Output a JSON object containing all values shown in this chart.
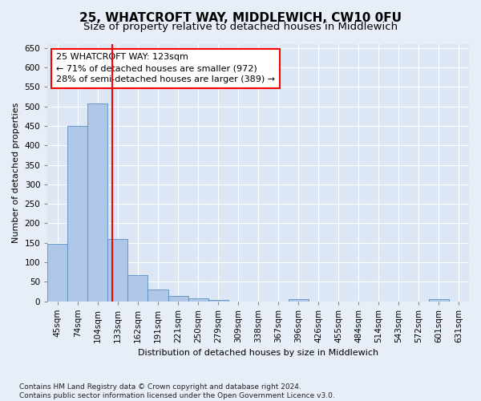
{
  "title": "25, WHATCROFT WAY, MIDDLEWICH, CW10 0FU",
  "subtitle": "Size of property relative to detached houses in Middlewich",
  "xlabel": "Distribution of detached houses by size in Middlewich",
  "ylabel": "Number of detached properties",
  "bar_labels": [
    "45sqm",
    "74sqm",
    "104sqm",
    "133sqm",
    "162sqm",
    "191sqm",
    "221sqm",
    "250sqm",
    "279sqm",
    "309sqm",
    "338sqm",
    "367sqm",
    "396sqm",
    "426sqm",
    "455sqm",
    "484sqm",
    "514sqm",
    "543sqm",
    "572sqm",
    "601sqm",
    "631sqm"
  ],
  "bar_values": [
    148,
    450,
    507,
    160,
    67,
    30,
    13,
    8,
    4,
    0,
    0,
    0,
    5,
    0,
    0,
    0,
    0,
    0,
    0,
    5,
    0
  ],
  "bar_color": "#aec6e8",
  "bar_edge_color": "#5a8fc0",
  "vline_x": 2.71,
  "vline_color": "red",
  "annotation_text": "25 WHATCROFT WAY: 123sqm\n← 71% of detached houses are smaller (972)\n28% of semi-detached houses are larger (389) →",
  "annotation_box_color": "white",
  "annotation_box_edge": "red",
  "ylim": [
    0,
    660
  ],
  "yticks": [
    0,
    50,
    100,
    150,
    200,
    250,
    300,
    350,
    400,
    450,
    500,
    550,
    600,
    650
  ],
  "bg_color": "#e8eef7",
  "plot_bg_color": "#dce6f5",
  "footer": "Contains HM Land Registry data © Crown copyright and database right 2024.\nContains public sector information licensed under the Open Government Licence v3.0.",
  "title_fontsize": 11,
  "subtitle_fontsize": 9.5,
  "footer_fontsize": 6.5,
  "axis_fontsize": 8,
  "tick_fontsize": 7.5,
  "annotation_fontsize": 8
}
